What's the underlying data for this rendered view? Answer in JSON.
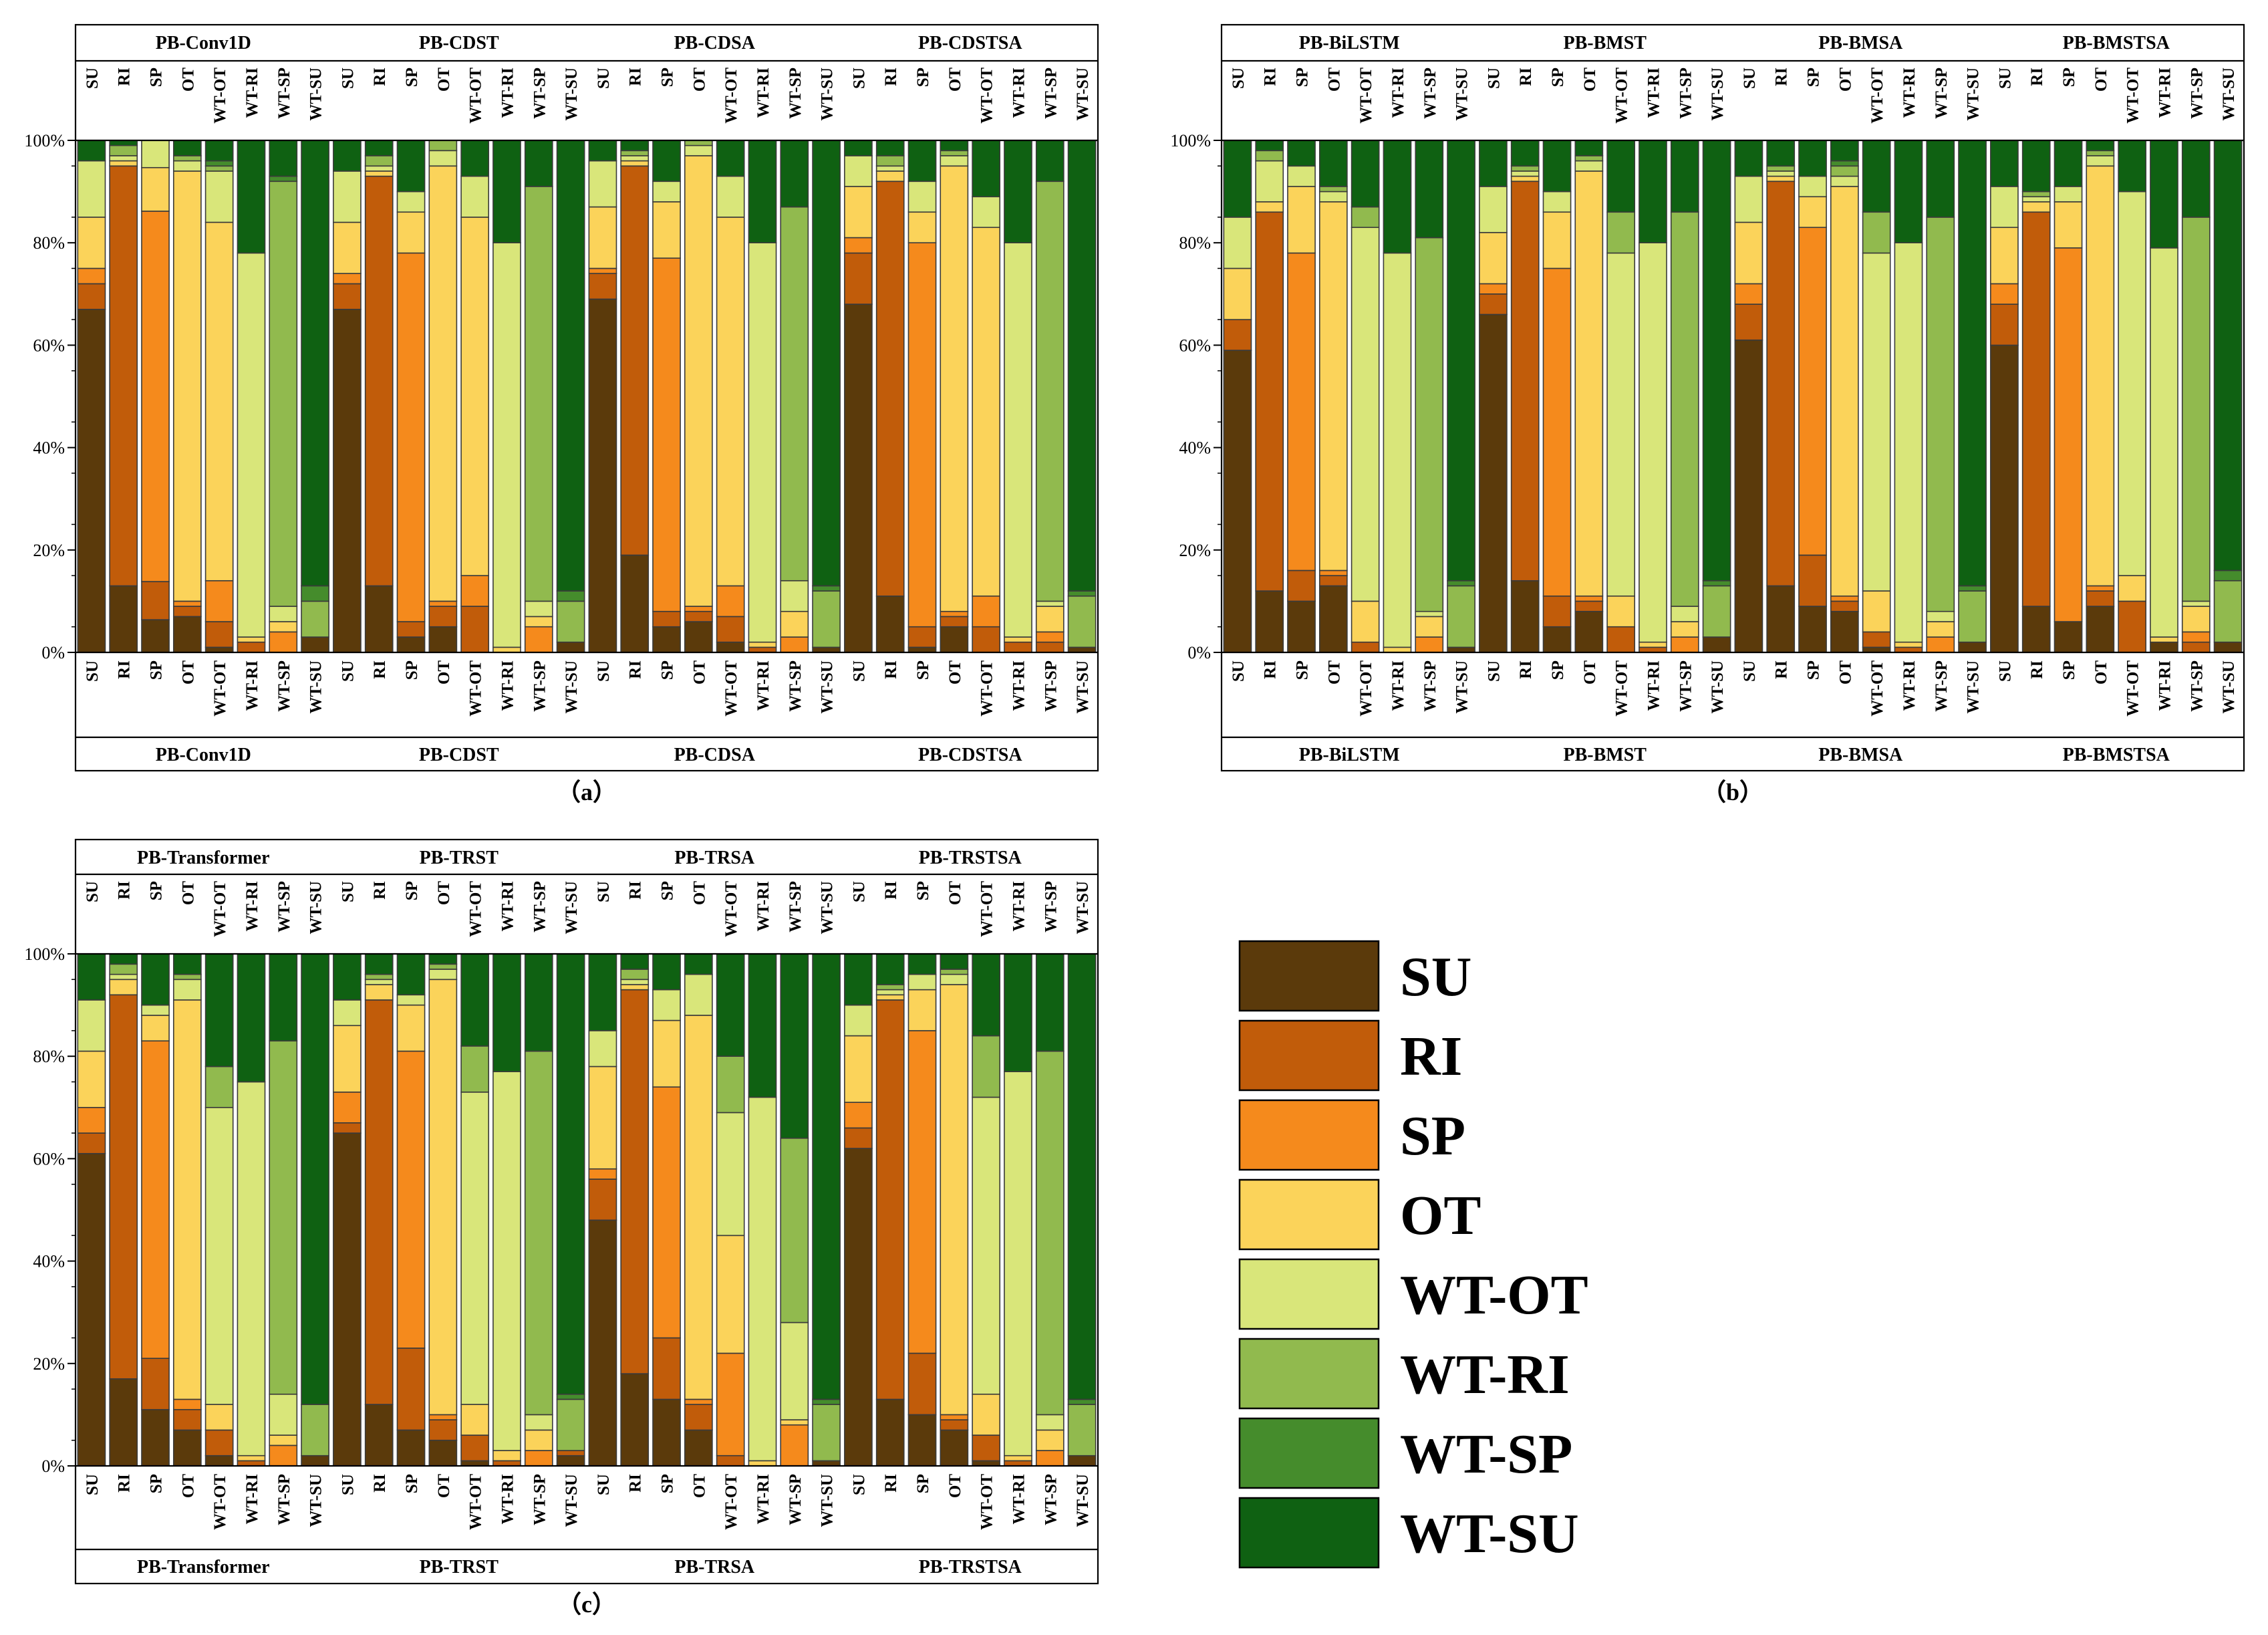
{
  "figure": {
    "categories": [
      "SU",
      "RI",
      "SP",
      "OT",
      "WT-OT",
      "WT-RI",
      "WT-SP",
      "WT-SU"
    ],
    "y_ticks": [
      "0%",
      "20%",
      "40%",
      "60%",
      "80%",
      "100%"
    ],
    "colors": {
      "SU": "#5b3a0b",
      "RI": "#c15c0a",
      "SP": "#f58a1c",
      "OT": "#fbd35a",
      "WT-OT": "#d9e67a",
      "WT-RI": "#91ba4e",
      "WT-SP": "#458c2c",
      "WT-SU": "#0f6112"
    }
  },
  "legend": {
    "items": [
      {
        "label": "SU"
      },
      {
        "label": "RI"
      },
      {
        "label": "SP"
      },
      {
        "label": "OT"
      },
      {
        "label": "WT-OT"
      },
      {
        "label": "WT-RI"
      },
      {
        "label": "WT-SP"
      },
      {
        "label": "WT-SU"
      }
    ]
  },
  "chart_data": [
    {
      "type": "bar",
      "stacked": true,
      "panel_label": "（a）",
      "ylim": [
        0,
        100
      ],
      "y_unit": "%",
      "groups": [
        {
          "name": "PB-Conv1D",
          "bars": {
            "SU": [
              67,
              5,
              3,
              10,
              11,
              0,
              0,
              4
            ],
            "RI": [
              13,
              82,
              0,
              1,
              1,
              2,
              0,
              1
            ],
            "SP": [
              6,
              7,
              68,
              8,
              5,
              0,
              0,
              0
            ],
            "OT": [
              7,
              2,
              1,
              84,
              2,
              1,
              0,
              3
            ],
            "WT-OT": [
              1,
              5,
              8,
              70,
              10,
              1,
              1,
              4
            ],
            "WT-RI": [
              0,
              2,
              0,
              1,
              75,
              0,
              0,
              22
            ],
            "WT-SP": [
              0,
              0,
              4,
              2,
              3,
              83,
              1,
              7
            ],
            "WT-SU": [
              3,
              0,
              0,
              0,
              0,
              7,
              3,
              87
            ]
          }
        },
        {
          "name": "PB-CDST",
          "bars": {
            "SU": [
              67,
              5,
              2,
              10,
              10,
              0,
              0,
              6
            ],
            "RI": [
              13,
              80,
              0,
              1,
              1,
              2,
              0,
              3
            ],
            "SP": [
              3,
              3,
              72,
              8,
              4,
              0,
              0,
              10
            ],
            "OT": [
              5,
              4,
              1,
              85,
              3,
              2,
              0,
              0
            ],
            "WT-OT": [
              0,
              9,
              6,
              70,
              8,
              0,
              0,
              7
            ],
            "WT-RI": [
              0,
              0,
              0,
              1,
              79,
              0,
              0,
              20
            ],
            "WT-SP": [
              0,
              0,
              5,
              2,
              3,
              81,
              0,
              9
            ],
            "WT-SU": [
              2,
              0,
              0,
              0,
              0,
              8,
              2,
              88
            ]
          }
        },
        {
          "name": "PB-CDSA",
          "bars": {
            "SU": [
              69,
              5,
              1,
              12,
              9,
              0,
              0,
              4
            ],
            "RI": [
              19,
              76,
              0,
              1,
              1,
              1,
              0,
              2
            ],
            "SP": [
              5,
              3,
              69,
              11,
              4,
              0,
              0,
              8
            ],
            "OT": [
              6,
              2,
              1,
              88,
              2,
              1,
              0,
              0
            ],
            "WT-OT": [
              2,
              5,
              6,
              72,
              8,
              0,
              0,
              7
            ],
            "WT-RI": [
              0,
              1,
              0,
              1,
              78,
              0,
              0,
              20
            ],
            "WT-SP": [
              0,
              0,
              3,
              5,
              6,
              73,
              0,
              13
            ],
            "WT-SU": [
              1,
              0,
              0,
              0,
              0,
              11,
              1,
              87
            ]
          }
        },
        {
          "name": "PB-CDSTSA",
          "bars": {
            "SU": [
              68,
              10,
              3,
              10,
              6,
              0,
              0,
              3
            ],
            "RI": [
              11,
              81,
              0,
              2,
              1,
              2,
              0,
              3
            ],
            "SP": [
              1,
              4,
              75,
              6,
              6,
              0,
              0,
              8
            ],
            "OT": [
              5,
              2,
              1,
              87,
              2,
              1,
              0,
              2
            ],
            "WT-OT": [
              0,
              5,
              6,
              72,
              6,
              0,
              0,
              11
            ],
            "WT-RI": [
              0,
              2,
              0,
              1,
              77,
              0,
              0,
              20
            ],
            "WT-SP": [
              0,
              2,
              2,
              5,
              1,
              82,
              0,
              8
            ],
            "WT-SU": [
              1,
              0,
              0,
              0,
              0,
              10,
              1,
              88
            ]
          }
        }
      ]
    },
    {
      "type": "bar",
      "stacked": true,
      "panel_label": "（b）",
      "ylim": [
        0,
        100
      ],
      "y_unit": "%",
      "groups": [
        {
          "name": "PB-BiLSTM",
          "bars": {
            "SU": [
              59,
              6,
              0,
              10,
              10,
              0,
              0,
              15
            ],
            "RI": [
              12,
              74,
              0,
              2,
              8,
              2,
              0,
              2
            ],
            "SP": [
              10,
              6,
              62,
              13,
              4,
              0,
              0,
              5
            ],
            "OT": [
              13,
              2,
              1,
              72,
              2,
              1,
              0,
              9
            ],
            "WT-OT": [
              0,
              2,
              0,
              8,
              73,
              4,
              0,
              13
            ],
            "WT-RI": [
              0,
              0,
              0,
              1,
              77,
              0,
              0,
              22
            ],
            "WT-SP": [
              0,
              0,
              3,
              4,
              1,
              73,
              0,
              19
            ],
            "WT-SU": [
              1,
              0,
              0,
              0,
              0,
              12,
              1,
              86
            ]
          }
        },
        {
          "name": "PB-BMST",
          "bars": {
            "SU": [
              66,
              4,
              2,
              10,
              9,
              0,
              0,
              9
            ],
            "RI": [
              14,
              78,
              0,
              1,
              1,
              1,
              0,
              5
            ],
            "SP": [
              5,
              6,
              64,
              11,
              4,
              0,
              0,
              10
            ],
            "OT": [
              8,
              2,
              1,
              83,
              2,
              1,
              0,
              3
            ],
            "WT-OT": [
              0,
              5,
              0,
              6,
              67,
              8,
              0,
              14
            ],
            "WT-RI": [
              0,
              1,
              0,
              1,
              78,
              0,
              0,
              20
            ],
            "WT-SP": [
              0,
              0,
              3,
              3,
              3,
              77,
              0,
              14
            ],
            "WT-SU": [
              3,
              0,
              0,
              0,
              0,
              10,
              1,
              86
            ]
          }
        },
        {
          "name": "PB-BMSA",
          "bars": {
            "SU": [
              61,
              7,
              4,
              12,
              9,
              0,
              0,
              7
            ],
            "RI": [
              13,
              79,
              0,
              1,
              1,
              1,
              0,
              5
            ],
            "SP": [
              9,
              10,
              64,
              6,
              4,
              0,
              0,
              7
            ],
            "OT": [
              8,
              2,
              1,
              80,
              2,
              2,
              1,
              4
            ],
            "WT-OT": [
              1,
              3,
              0,
              8,
              66,
              8,
              0,
              14
            ],
            "WT-RI": [
              0,
              1,
              0,
              1,
              78,
              0,
              0,
              20
            ],
            "WT-SP": [
              0,
              0,
              3,
              3,
              2,
              77,
              0,
              15
            ],
            "WT-SU": [
              2,
              0,
              0,
              0,
              0,
              10,
              1,
              87
            ]
          }
        },
        {
          "name": "PB-BMSTSA",
          "bars": {
            "SU": [
              60,
              8,
              4,
              11,
              8,
              0,
              0,
              9
            ],
            "RI": [
              9,
              77,
              0,
              2,
              1,
              1,
              0,
              10
            ],
            "SP": [
              6,
              0,
              73,
              9,
              3,
              0,
              0,
              9
            ],
            "OT": [
              9,
              3,
              1,
              82,
              2,
              1,
              0,
              2
            ],
            "WT-OT": [
              0,
              10,
              0,
              5,
              75,
              0,
              0,
              10
            ],
            "WT-RI": [
              2,
              0,
              0,
              1,
              76,
              0,
              0,
              21
            ],
            "WT-SP": [
              0,
              2,
              2,
              5,
              1,
              75,
              0,
              15
            ],
            "WT-SU": [
              2,
              0,
              0,
              0,
              0,
              12,
              2,
              84
            ]
          }
        }
      ]
    },
    {
      "type": "bar",
      "stacked": true,
      "panel_label": "（c）",
      "ylim": [
        0,
        100
      ],
      "y_unit": "%",
      "groups": [
        {
          "name": "PB-Transformer",
          "bars": {
            "SU": [
              61,
              4,
              5,
              11,
              10,
              0,
              0,
              9
            ],
            "RI": [
              17,
              75,
              0,
              3,
              1,
              2,
              0,
              2
            ],
            "SP": [
              11,
              10,
              62,
              5,
              2,
              0,
              0,
              10
            ],
            "OT": [
              7,
              4,
              2,
              78,
              4,
              1,
              0,
              4
            ],
            "WT-OT": [
              2,
              5,
              0,
              5,
              58,
              8,
              0,
              22
            ],
            "WT-RI": [
              0,
              1,
              0,
              1,
              73,
              0,
              0,
              25
            ],
            "WT-SP": [
              0,
              0,
              4,
              2,
              8,
              69,
              0,
              17
            ],
            "WT-SU": [
              2,
              0,
              0,
              0,
              0,
              10,
              0,
              88
            ]
          }
        },
        {
          "name": "PB-TRST",
          "bars": {
            "SU": [
              65,
              2,
              6,
              13,
              5,
              0,
              0,
              9
            ],
            "RI": [
              12,
              79,
              0,
              3,
              1,
              1,
              0,
              4
            ],
            "SP": [
              7,
              16,
              58,
              9,
              2,
              0,
              0,
              8
            ],
            "OT": [
              5,
              4,
              1,
              85,
              2,
              1,
              0,
              2
            ],
            "WT-OT": [
              1,
              5,
              0,
              6,
              61,
              9,
              0,
              18
            ],
            "WT-RI": [
              0,
              1,
              0,
              2,
              74,
              0,
              0,
              23
            ],
            "WT-SP": [
              0,
              0,
              3,
              4,
              3,
              71,
              0,
              19
            ],
            "WT-SU": [
              2,
              1,
              0,
              0,
              0,
              10,
              1,
              86
            ]
          }
        },
        {
          "name": "PB-TRSA",
          "bars": {
            "SU": [
              48,
              8,
              2,
              20,
              7,
              0,
              0,
              15
            ],
            "RI": [
              18,
              75,
              0,
              1,
              1,
              2,
              0,
              3
            ],
            "SP": [
              13,
              12,
              49,
              13,
              6,
              0,
              0,
              7
            ],
            "OT": [
              7,
              5,
              1,
              75,
              8,
              0,
              0,
              4
            ],
            "WT-OT": [
              0,
              2,
              20,
              23,
              24,
              11,
              0,
              20
            ],
            "WT-RI": [
              0,
              0,
              0,
              1,
              71,
              0,
              0,
              28
            ],
            "WT-SP": [
              0,
              0,
              8,
              1,
              19,
              36,
              0,
              36
            ],
            "WT-SU": [
              1,
              0,
              0,
              0,
              0,
              11,
              1,
              87
            ]
          }
        },
        {
          "name": "PB-TRSTSA",
          "bars": {
            "SU": [
              62,
              4,
              5,
              13,
              6,
              0,
              0,
              10
            ],
            "RI": [
              13,
              78,
              0,
              1,
              1,
              1,
              0,
              6
            ],
            "SP": [
              10,
              12,
              63,
              8,
              3,
              0,
              0,
              4
            ],
            "OT": [
              7,
              2,
              1,
              84,
              2,
              1,
              0,
              3
            ],
            "WT-OT": [
              1,
              5,
              0,
              8,
              58,
              12,
              0,
              16
            ],
            "WT-RI": [
              0,
              1,
              0,
              1,
              75,
              0,
              0,
              23
            ],
            "WT-SP": [
              0,
              0,
              3,
              4,
              3,
              71,
              0,
              19
            ],
            "WT-SU": [
              2,
              0,
              0,
              0,
              0,
              10,
              1,
              87
            ]
          }
        }
      ]
    }
  ]
}
